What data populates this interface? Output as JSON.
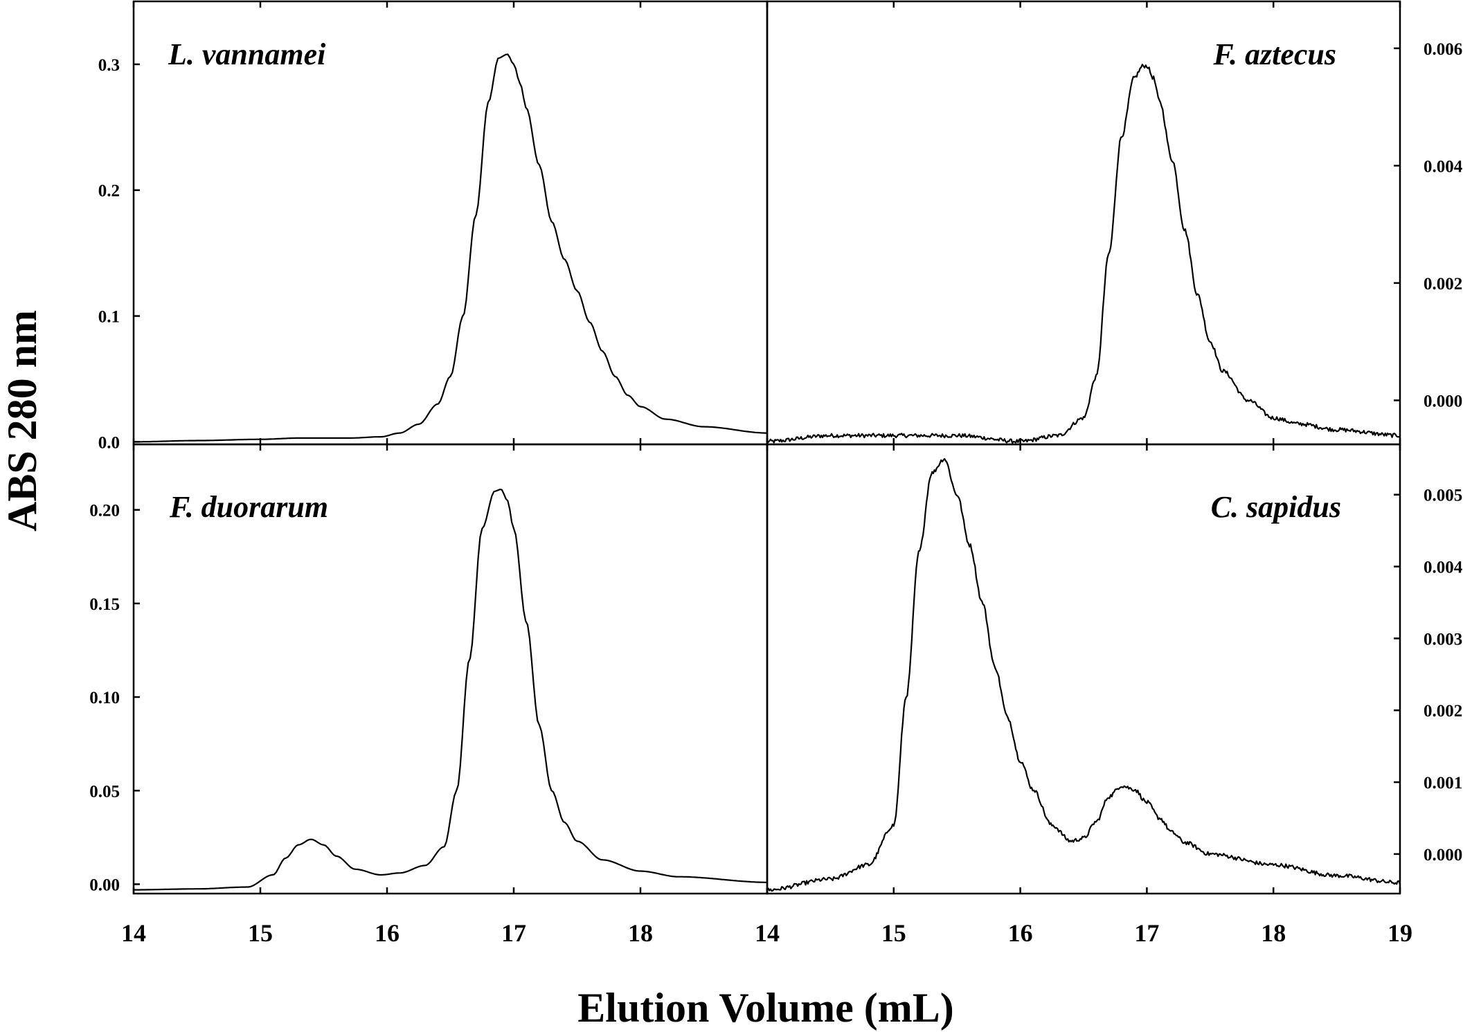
{
  "chart_data": {
    "type": "line",
    "ylabel": "ABS 280 nm",
    "xlabel": "Elution Volume (mL)",
    "grid": false,
    "x_ticks": [
      "14",
      "15",
      "16",
      "17",
      "18",
      "19"
    ],
    "panels": [
      {
        "id": "tl",
        "title": "L. vannamei",
        "xlim": [
          14,
          19
        ],
        "ylim": [
          -0.002,
          0.35
        ],
        "y_axis_side": "left",
        "y_ticks": [
          0.0,
          0.1,
          0.2,
          0.3
        ],
        "y_tick_labels": [
          "0.0",
          "0.1",
          "0.2",
          "0.3"
        ],
        "noisy": false,
        "x": [
          14.0,
          14.5,
          15.0,
          15.3,
          15.7,
          15.95,
          16.1,
          16.25,
          16.4,
          16.5,
          16.6,
          16.7,
          16.8,
          16.88,
          16.95,
          17.0,
          17.05,
          17.1,
          17.2,
          17.3,
          17.4,
          17.5,
          17.6,
          17.7,
          17.8,
          17.9,
          18.0,
          18.2,
          18.5,
          19.0
        ],
        "y": [
          0.0,
          0.001,
          0.002,
          0.003,
          0.003,
          0.004,
          0.007,
          0.014,
          0.03,
          0.052,
          0.1,
          0.18,
          0.27,
          0.305,
          0.308,
          0.3,
          0.285,
          0.265,
          0.22,
          0.175,
          0.145,
          0.12,
          0.095,
          0.072,
          0.052,
          0.037,
          0.028,
          0.018,
          0.012,
          0.007
        ]
      },
      {
        "id": "tr",
        "title": "F. aztecus",
        "xlim": [
          14,
          19
        ],
        "ylim": [
          -0.00075,
          0.0068
        ],
        "y_axis_side": "right",
        "y_ticks": [
          0.0,
          0.002,
          0.004,
          0.006
        ],
        "y_tick_labels": [
          "0.000",
          "0.002",
          "0.004",
          "0.006"
        ],
        "noisy": true,
        "x": [
          14.0,
          14.5,
          15.0,
          15.5,
          16.0,
          16.3,
          16.5,
          16.6,
          16.7,
          16.8,
          16.9,
          16.97,
          17.0,
          17.05,
          17.1,
          17.2,
          17.3,
          17.4,
          17.5,
          17.6,
          17.8,
          18.0,
          18.2,
          18.5,
          19.0
        ],
        "y": [
          -0.0007,
          -0.0006,
          -0.0006,
          -0.0006,
          -0.0007,
          -0.0006,
          -0.0003,
          0.0004,
          0.0025,
          0.0045,
          0.0055,
          0.0057,
          0.0057,
          0.0055,
          0.0051,
          0.0041,
          0.0029,
          0.0018,
          0.001,
          0.0005,
          0.0,
          -0.0003,
          -0.0004,
          -0.0005,
          -0.0006
        ]
      },
      {
        "id": "bl",
        "title": "F. duorarum",
        "xlim": [
          14,
          19
        ],
        "ylim": [
          -0.005,
          0.235
        ],
        "y_axis_side": "left",
        "y_ticks": [
          0.0,
          0.05,
          0.1,
          0.15,
          0.2
        ],
        "y_tick_labels": [
          "0.00",
          "0.05",
          "0.10",
          "0.15",
          "0.20"
        ],
        "noisy": false,
        "x": [
          14.0,
          14.5,
          14.9,
          15.1,
          15.2,
          15.3,
          15.4,
          15.5,
          15.6,
          15.75,
          15.95,
          16.1,
          16.3,
          16.45,
          16.55,
          16.65,
          16.75,
          16.85,
          16.9,
          16.95,
          17.0,
          17.1,
          17.2,
          17.3,
          17.4,
          17.5,
          17.7,
          18.0,
          18.3,
          19.0
        ],
        "y": [
          -0.003,
          -0.0025,
          -0.0015,
          0.005,
          0.014,
          0.021,
          0.024,
          0.021,
          0.015,
          0.008,
          0.005,
          0.006,
          0.01,
          0.02,
          0.05,
          0.12,
          0.19,
          0.21,
          0.211,
          0.205,
          0.19,
          0.14,
          0.085,
          0.05,
          0.033,
          0.023,
          0.013,
          0.007,
          0.004,
          0.001
        ]
      },
      {
        "id": "br",
        "title": "C. sapidus",
        "xlim": [
          14,
          19
        ],
        "ylim": [
          -0.00055,
          0.0057
        ],
        "y_axis_side": "right",
        "y_ticks": [
          0.0,
          0.001,
          0.002,
          0.003,
          0.004,
          0.005
        ],
        "y_tick_labels": [
          "0.000",
          "0.001",
          "0.002",
          "0.003",
          "0.004",
          "0.005"
        ],
        "noisy": true,
        "x": [
          14.0,
          14.5,
          14.8,
          15.0,
          15.1,
          15.2,
          15.3,
          15.4,
          15.5,
          15.6,
          15.7,
          15.8,
          15.9,
          16.0,
          16.1,
          16.25,
          16.4,
          16.5,
          16.6,
          16.7,
          16.8,
          16.9,
          17.0,
          17.1,
          17.2,
          17.3,
          17.5,
          18.0,
          18.5,
          19.0
        ],
        "y": [
          -0.0005,
          -0.00035,
          -0.00015,
          0.0004,
          0.0022,
          0.0042,
          0.0053,
          0.0055,
          0.005,
          0.0043,
          0.0035,
          0.0026,
          0.0019,
          0.0013,
          0.0009,
          0.0004,
          0.00018,
          0.00022,
          0.00045,
          0.0008,
          0.00095,
          0.0009,
          0.00072,
          0.0005,
          0.0003,
          0.00016,
          0.0,
          -0.00015,
          -0.0003,
          -0.0004
        ]
      }
    ]
  }
}
